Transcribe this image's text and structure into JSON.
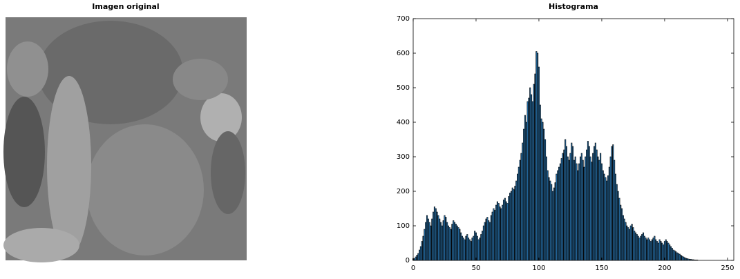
{
  "image": {
    "title": "Imagen original"
  },
  "chart_data": {
    "type": "bar",
    "title": "Histograma",
    "x": [
      0,
      1,
      2,
      3,
      4,
      5,
      6,
      7,
      8,
      9,
      10,
      11,
      12,
      13,
      14,
      15,
      16,
      17,
      18,
      19,
      20,
      21,
      22,
      23,
      24,
      25,
      26,
      27,
      28,
      29,
      30,
      31,
      32,
      33,
      34,
      35,
      36,
      37,
      38,
      39,
      40,
      41,
      42,
      43,
      44,
      45,
      46,
      47,
      48,
      49,
      50,
      51,
      52,
      53,
      54,
      55,
      56,
      57,
      58,
      59,
      60,
      61,
      62,
      63,
      64,
      65,
      66,
      67,
      68,
      69,
      70,
      71,
      72,
      73,
      74,
      75,
      76,
      77,
      78,
      79,
      80,
      81,
      82,
      83,
      84,
      85,
      86,
      87,
      88,
      89,
      90,
      91,
      92,
      93,
      94,
      95,
      96,
      97,
      98,
      99,
      100,
      101,
      102,
      103,
      104,
      105,
      106,
      107,
      108,
      109,
      110,
      111,
      112,
      113,
      114,
      115,
      116,
      117,
      118,
      119,
      120,
      121,
      122,
      123,
      124,
      125,
      126,
      127,
      128,
      129,
      130,
      131,
      132,
      133,
      134,
      135,
      136,
      137,
      138,
      139,
      140,
      141,
      142,
      143,
      144,
      145,
      146,
      147,
      148,
      149,
      150,
      151,
      152,
      153,
      154,
      155,
      156,
      157,
      158,
      159,
      160,
      161,
      162,
      163,
      164,
      165,
      166,
      167,
      168,
      169,
      170,
      171,
      172,
      173,
      174,
      175,
      176,
      177,
      178,
      179,
      180,
      181,
      182,
      183,
      184,
      185,
      186,
      187,
      188,
      189,
      190,
      191,
      192,
      193,
      194,
      195,
      196,
      197,
      198,
      199,
      200,
      201,
      202,
      203,
      204,
      205,
      206,
      207,
      208,
      209,
      210,
      211,
      212,
      213,
      214,
      215,
      216,
      217,
      218,
      219,
      220,
      221,
      222,
      223,
      224,
      225,
      226,
      227,
      228,
      229,
      230,
      231,
      232,
      233,
      234,
      235,
      236,
      237,
      238,
      239,
      240,
      241,
      242,
      243,
      244,
      245,
      246,
      247,
      248,
      249,
      250,
      251,
      252,
      253,
      254,
      255
    ],
    "values": [
      5,
      5,
      10,
      15,
      20,
      30,
      40,
      55,
      70,
      90,
      110,
      130,
      120,
      110,
      100,
      120,
      140,
      155,
      150,
      140,
      130,
      120,
      110,
      100,
      115,
      130,
      125,
      110,
      100,
      95,
      90,
      105,
      115,
      110,
      105,
      100,
      95,
      90,
      80,
      70,
      65,
      60,
      70,
      75,
      65,
      60,
      55,
      65,
      70,
      85,
      80,
      70,
      60,
      65,
      75,
      85,
      100,
      110,
      120,
      125,
      115,
      110,
      130,
      140,
      150,
      145,
      160,
      170,
      165,
      155,
      150,
      160,
      175,
      180,
      170,
      165,
      185,
      195,
      200,
      210,
      205,
      215,
      230,
      250,
      270,
      290,
      310,
      340,
      380,
      420,
      400,
      460,
      470,
      500,
      480,
      460,
      510,
      540,
      605,
      600,
      560,
      450,
      410,
      400,
      380,
      350,
      300,
      260,
      240,
      230,
      220,
      200,
      210,
      225,
      250,
      260,
      270,
      280,
      295,
      310,
      320,
      350,
      330,
      300,
      290,
      310,
      340,
      330,
      290,
      300,
      280,
      260,
      280,
      300,
      310,
      290,
      270,
      300,
      320,
      345,
      330,
      300,
      285,
      310,
      330,
      340,
      320,
      300,
      290,
      310,
      280,
      260,
      250,
      240,
      230,
      245,
      270,
      300,
      330,
      335,
      290,
      250,
      220,
      200,
      180,
      160,
      150,
      130,
      120,
      110,
      100,
      95,
      90,
      100,
      105,
      95,
      85,
      80,
      75,
      70,
      65,
      70,
      75,
      80,
      70,
      65,
      60,
      65,
      60,
      55,
      60,
      65,
      70,
      60,
      55,
      50,
      60,
      55,
      50,
      45,
      55,
      60,
      55,
      50,
      45,
      40,
      35,
      30,
      28,
      25,
      22,
      20,
      18,
      15,
      12,
      10,
      8,
      6,
      5,
      4,
      3,
      3,
      2,
      2,
      1,
      1,
      1,
      0,
      0,
      0,
      0,
      0,
      0,
      0,
      0,
      0,
      0,
      0,
      0,
      0,
      0,
      0,
      0,
      0,
      0,
      0,
      0,
      0,
      0,
      0,
      0,
      0,
      0,
      0,
      0,
      0
    ],
    "color": "#2a7ab8",
    "edgecolor": "#000000",
    "xlim": [
      0,
      255
    ],
    "xticks": [
      0,
      50,
      100,
      150,
      200,
      250
    ],
    "ylim": [
      0,
      700
    ],
    "yticks": [
      0,
      100,
      200,
      300,
      400,
      500,
      600,
      700
    ]
  }
}
